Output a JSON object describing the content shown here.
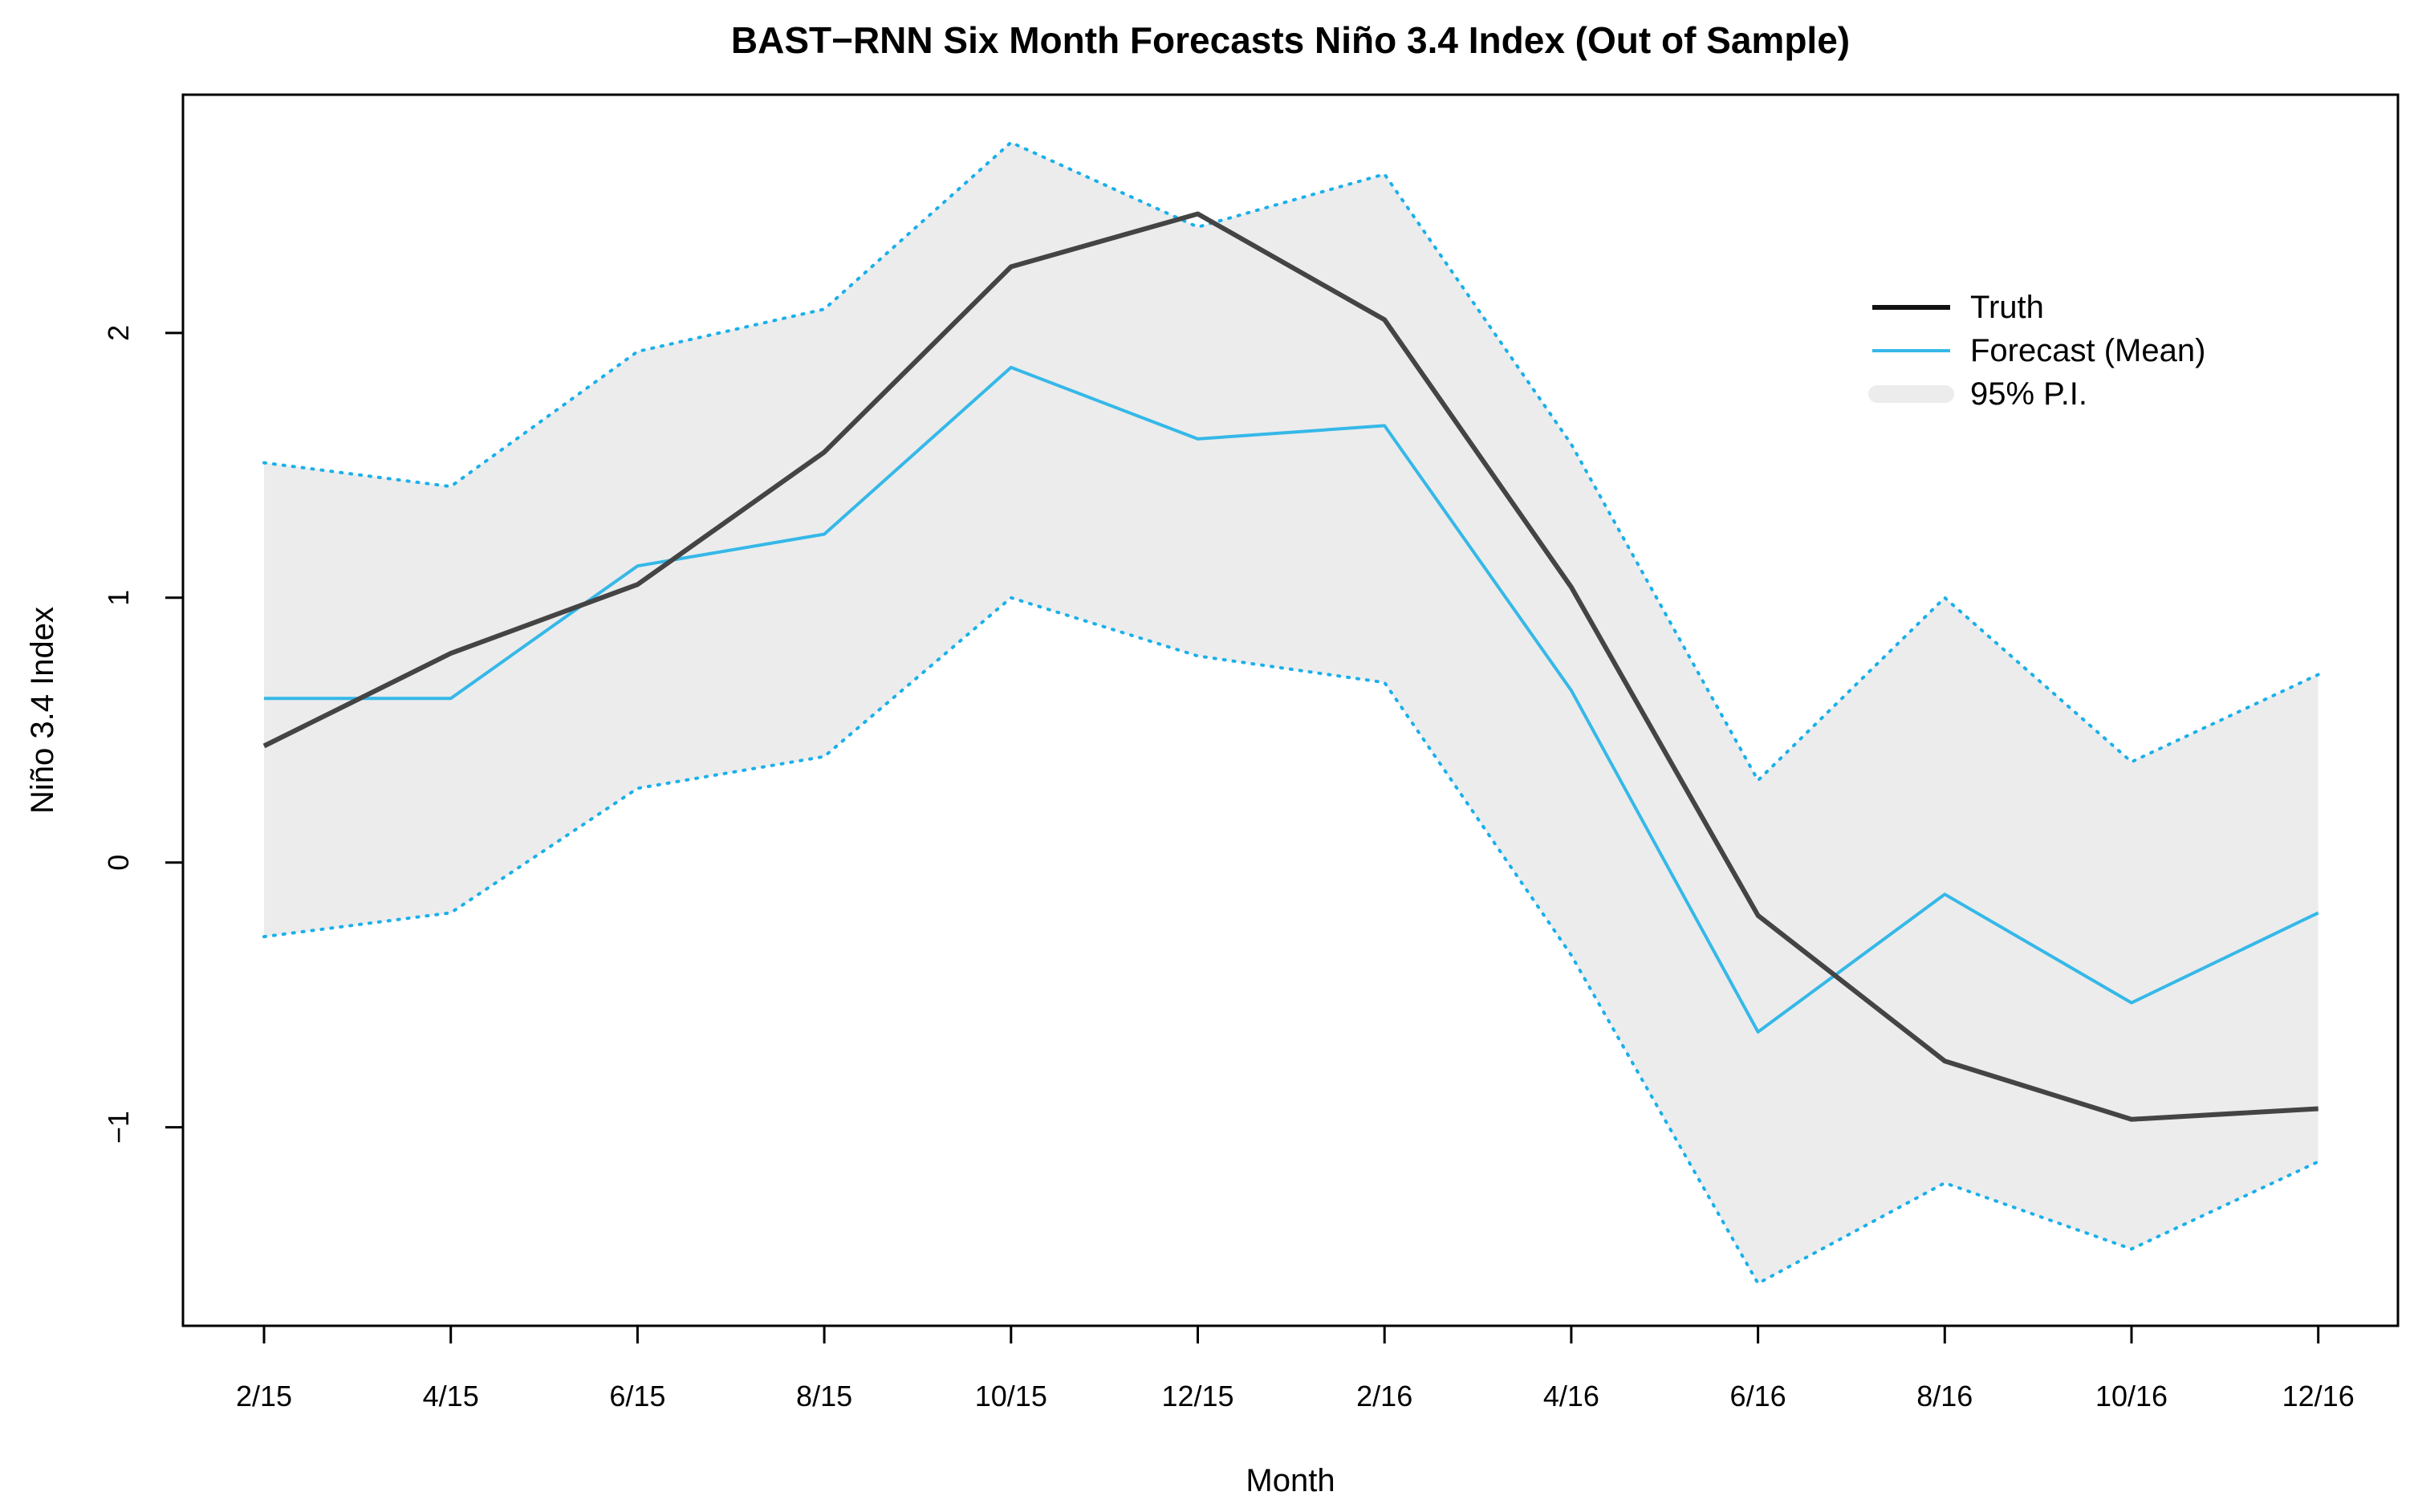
{
  "chart_data": {
    "type": "line",
    "title": "BAST−RNN Six Month Forecasts Niño 3.4 Index (Out of Sample)",
    "xlabel": "Month",
    "ylabel": "Niño 3.4 Index",
    "categories": [
      "2/15",
      "4/15",
      "6/15",
      "8/15",
      "10/15",
      "12/15",
      "2/16",
      "4/16",
      "6/16",
      "8/16",
      "10/16",
      "12/16"
    ],
    "ylim": [
      -1.75,
      2.9
    ],
    "yticks": [
      {
        "value": -1,
        "label": "−1"
      },
      {
        "value": 0,
        "label": "0"
      },
      {
        "value": 1,
        "label": "1"
      },
      {
        "value": 2,
        "label": "2"
      }
    ],
    "grid": false,
    "legend_position": "top-right",
    "series": [
      {
        "name": "Truth",
        "color": "#444444",
        "values": [
          0.44,
          0.79,
          1.05,
          1.55,
          2.25,
          2.45,
          2.05,
          1.04,
          -0.2,
          -0.75,
          -0.97,
          -0.93
        ]
      },
      {
        "name": "Forecast (Mean)",
        "color": "#35b8e8",
        "values": [
          0.62,
          0.62,
          1.12,
          1.24,
          1.87,
          1.6,
          1.65,
          0.65,
          -0.64,
          -0.12,
          -0.53,
          -0.19
        ]
      }
    ],
    "interval": {
      "name": "95% P.I.",
      "fill_color": "#ececec",
      "line_color": "#1ab0ea",
      "lower": [
        -0.28,
        -0.19,
        0.28,
        0.4,
        1.0,
        0.78,
        0.68,
        -0.35,
        -1.59,
        -1.21,
        -1.46,
        -1.13
      ],
      "upper": [
        1.51,
        1.42,
        1.93,
        2.09,
        2.72,
        2.4,
        2.6,
        1.58,
        0.31,
        1.0,
        0.38,
        0.71
      ]
    },
    "legend": [
      {
        "label": "Truth",
        "key": "truth"
      },
      {
        "label": "Forecast (Mean)",
        "key": "forecast"
      },
      {
        "label": "95% P.I.",
        "key": "interval"
      }
    ]
  }
}
